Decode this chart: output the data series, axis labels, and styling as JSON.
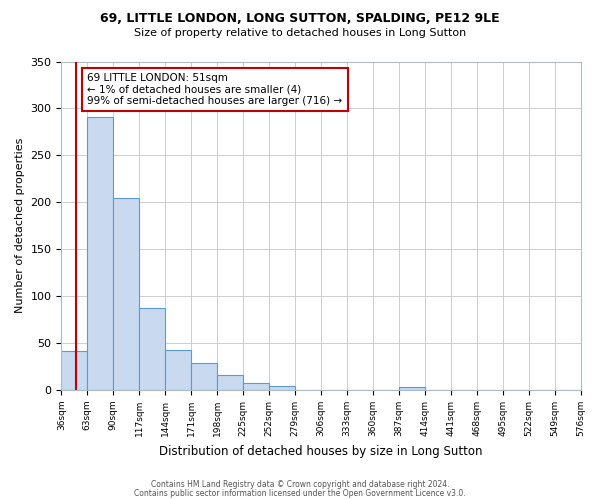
{
  "title_line1": "69, LITTLE LONDON, LONG SUTTON, SPALDING, PE12 9LE",
  "title_line2": "Size of property relative to detached houses in Long Sutton",
  "xlabel": "Distribution of detached houses by size in Long Sutton",
  "ylabel": "Number of detached properties",
  "footer_line1": "Contains HM Land Registry data © Crown copyright and database right 2024.",
  "footer_line2": "Contains public sector information licensed under the Open Government Licence v3.0.",
  "annotation_title": "69 LITTLE LONDON: 51sqm",
  "annotation_line1": "← 1% of detached houses are smaller (4)",
  "annotation_line2": "99% of semi-detached houses are larger (716) →",
  "bar_edges": [
    36,
    63,
    90,
    117,
    144,
    171,
    198,
    225,
    252,
    279,
    306,
    333,
    360,
    387,
    414,
    441,
    468,
    495,
    522,
    549,
    576
  ],
  "bar_heights": [
    42,
    291,
    205,
    87,
    43,
    29,
    16,
    8,
    4,
    0,
    0,
    0,
    0,
    3,
    0,
    0,
    0,
    0,
    0,
    0
  ],
  "property_size": 51,
  "bar_color": "#c9daf0",
  "bar_edge_color": "#5b9bd5",
  "vline_color": "#c00000",
  "annotation_box_edge": "#c00000",
  "ylim": [
    0,
    350
  ],
  "yticks": [
    0,
    50,
    100,
    150,
    200,
    250,
    300,
    350
  ],
  "background_color": "#ffffff",
  "grid_color": "#c8c8c8"
}
